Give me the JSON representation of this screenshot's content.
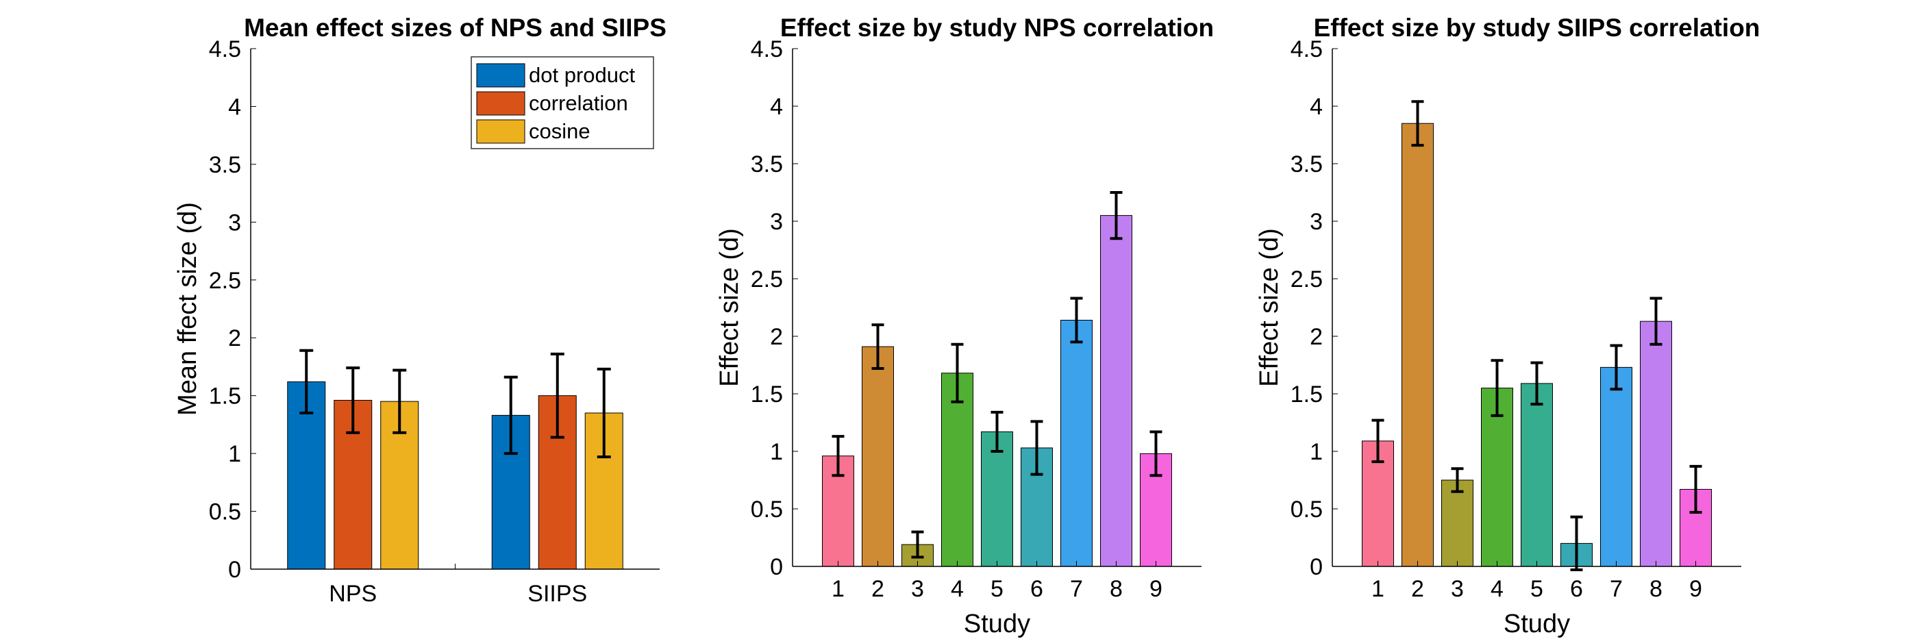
{
  "chart_data": [
    {
      "type": "bar",
      "title": "Mean effect sizes of NPS and SIIPS",
      "xlabel": "",
      "ylabel": "Mean ffect size (d)",
      "ylim": [
        0,
        4.5
      ],
      "yticks": [
        "0",
        "0.5",
        "1",
        "1.5",
        "2",
        "2.5",
        "3",
        "3.5",
        "4",
        "4.5"
      ],
      "categories": [
        "NPS",
        "SIIPS"
      ],
      "series": [
        {
          "name": "dot product",
          "color": "#0072BD",
          "values": [
            1.62,
            1.33
          ],
          "error": [
            0.27,
            0.33
          ]
        },
        {
          "name": "correlation",
          "color": "#D95319",
          "values": [
            1.46,
            1.5
          ],
          "error": [
            0.28,
            0.36
          ]
        },
        {
          "name": "cosine",
          "color": "#EDB120",
          "values": [
            1.45,
            1.35
          ],
          "error": [
            0.27,
            0.38
          ]
        }
      ],
      "legend_position": "top-right",
      "grid": false
    },
    {
      "type": "bar",
      "title": "Effect size by study NPS correlation",
      "xlabel": "Study",
      "ylabel": "Effect size (d)",
      "ylim": [
        0,
        4.5
      ],
      "yticks": [
        "0",
        "0.5",
        "1",
        "1.5",
        "2",
        "2.5",
        "3",
        "3.5",
        "4",
        "4.5"
      ],
      "categories": [
        "1",
        "2",
        "3",
        "4",
        "5",
        "6",
        "7",
        "8",
        "9"
      ],
      "values": [
        0.96,
        1.91,
        0.19,
        1.68,
        1.17,
        1.03,
        2.14,
        3.05,
        0.98
      ],
      "error": [
        0.17,
        0.19,
        0.11,
        0.25,
        0.17,
        0.23,
        0.19,
        0.2,
        0.19
      ],
      "colors": [
        "#F7738F",
        "#CE8B33",
        "#A59F32",
        "#51B033",
        "#35AD8E",
        "#38A8B5",
        "#3CA2EC",
        "#C07FF0",
        "#F565DE"
      ],
      "grid": false
    },
    {
      "type": "bar",
      "title": "Effect size by study SIIPS correlation",
      "xlabel": "Study",
      "ylabel": "Effect size (d)",
      "ylim": [
        0,
        4.5
      ],
      "yticks": [
        "0",
        "0.5",
        "1",
        "1.5",
        "2",
        "2.5",
        "3",
        "3.5",
        "4",
        "4.5"
      ],
      "categories": [
        "1",
        "2",
        "3",
        "4",
        "5",
        "6",
        "7",
        "8",
        "9"
      ],
      "values": [
        1.09,
        3.85,
        0.75,
        1.55,
        1.59,
        0.2,
        1.73,
        2.13,
        0.67
      ],
      "error": [
        0.18,
        0.19,
        0.1,
        0.24,
        0.18,
        0.23,
        0.19,
        0.2,
        0.2
      ],
      "colors": [
        "#F7738F",
        "#CE8B33",
        "#A59F32",
        "#51B033",
        "#35AD8E",
        "#38A8B5",
        "#3CA2EC",
        "#C07FF0",
        "#F565DE"
      ],
      "grid": false
    }
  ]
}
